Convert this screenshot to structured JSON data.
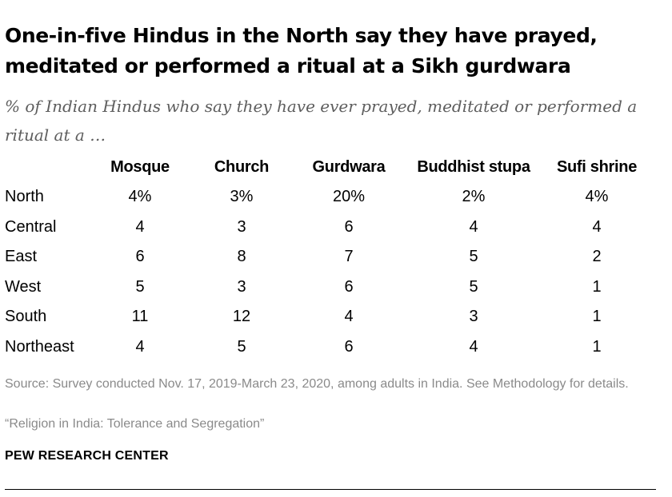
{
  "header": {
    "title": "One-in-five Hindus in the North say they have prayed, meditated or performed a ritual at a Sikh gurdwara",
    "subtitle": "% of Indian Hindus who say they have ever prayed, meditated or performed a ritual at a …"
  },
  "chart_data": {
    "type": "table",
    "columns": [
      "Mosque",
      "Church",
      "Gurdwara",
      "Buddhist stupa",
      "Sufi shrine"
    ],
    "rows": [
      {
        "label": "North",
        "cells": [
          "4%",
          "3%",
          "20%",
          "2%",
          "4%"
        ]
      },
      {
        "label": "Central",
        "cells": [
          "4",
          "3",
          "6",
          "4",
          "4"
        ]
      },
      {
        "label": "East",
        "cells": [
          "6",
          "8",
          "7",
          "5",
          "2"
        ]
      },
      {
        "label": "West",
        "cells": [
          "5",
          "3",
          "6",
          "5",
          "1"
        ]
      },
      {
        "label": "South",
        "cells": [
          "11",
          "12",
          "4",
          "3",
          "1"
        ]
      },
      {
        "label": "Northeast",
        "cells": [
          "4",
          "5",
          "6",
          "4",
          "1"
        ]
      }
    ]
  },
  "footer": {
    "source": "Source: Survey conducted Nov. 17, 2019-March 23, 2020, among adults in India. See Methodology for details.",
    "report": "“Religion in India: Tolerance and Segregation”",
    "brand": "PEW RESEARCH CENTER"
  },
  "colors": {
    "text": "#000000",
    "subtitle": "#5e5e5e",
    "note": "#8a8a8a"
  }
}
